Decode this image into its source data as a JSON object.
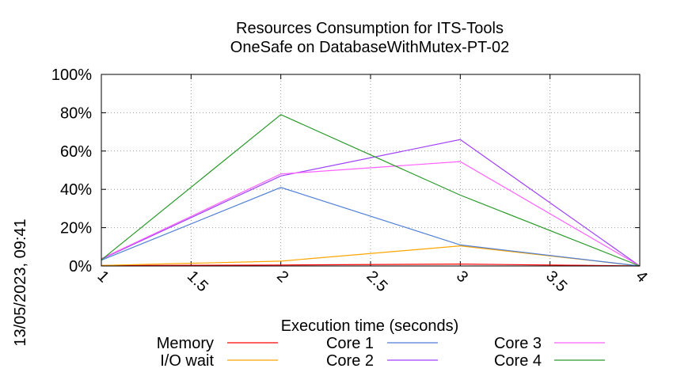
{
  "chart_data": {
    "type": "line",
    "title": "Resources Consumption for ITS-Tools",
    "subtitle": "OneSafe on DatabaseWithMutex-PT-02",
    "xlabel": "Execution time (seconds)",
    "ylabel": "",
    "side_label": "13/05/2023, 09:41",
    "xlim": [
      1,
      4
    ],
    "ylim": [
      0,
      100
    ],
    "x_ticks": [
      "1",
      "1.5",
      "2",
      "2.5",
      "3",
      "3.5",
      "4"
    ],
    "y_ticks": [
      "0%",
      "20%",
      "40%",
      "60%",
      "80%",
      "100%"
    ],
    "grid": true,
    "legend_position": "bottom",
    "series": [
      {
        "name": "Memory",
        "color": "#ff0000",
        "x": [
          1,
          2,
          3,
          4
        ],
        "values": [
          0.2,
          0.5,
          1.0,
          0
        ]
      },
      {
        "name": "I/O wait",
        "color": "#ffa500",
        "x": [
          1,
          2,
          3,
          4
        ],
        "values": [
          0.3,
          2.5,
          10.5,
          0
        ]
      },
      {
        "name": "Core 1",
        "color": "#4f7fd6",
        "x": [
          1,
          2,
          3,
          4
        ],
        "values": [
          3,
          41,
          11,
          0
        ]
      },
      {
        "name": "Core 2",
        "color": "#a040ff",
        "x": [
          1,
          2,
          3,
          4
        ],
        "values": [
          3.5,
          47,
          66,
          0
        ]
      },
      {
        "name": "Core 3",
        "color": "#ff60ff",
        "x": [
          1,
          2,
          3,
          4
        ],
        "values": [
          3.8,
          48,
          54.5,
          0
        ]
      },
      {
        "name": "Core 4",
        "color": "#2a9a2a",
        "x": [
          1,
          2,
          3,
          4
        ],
        "values": [
          3.2,
          79,
          37,
          0
        ]
      }
    ]
  }
}
